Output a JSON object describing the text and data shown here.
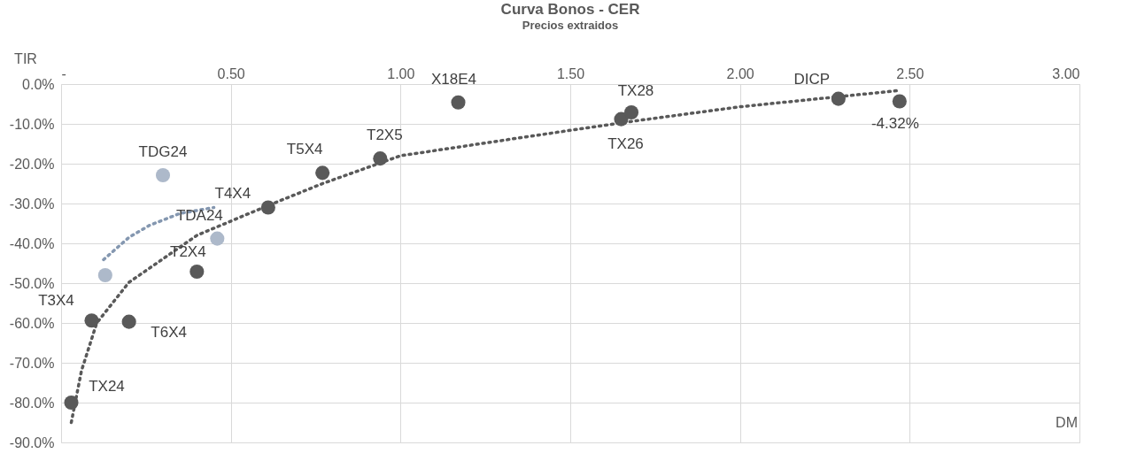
{
  "chart_data": {
    "type": "scatter",
    "title": "Curva Bonos - CER",
    "subtitle": "Precios extraidos",
    "xlabel": "DM",
    "ylabel": "TIR",
    "xlim": [
      0,
      3
    ],
    "xticks": [
      {
        "value": 0,
        "label": "-"
      },
      {
        "value": 0.5,
        "label": "0.50"
      },
      {
        "value": 1,
        "label": "1.00"
      },
      {
        "value": 1.5,
        "label": "1.50"
      },
      {
        "value": 2,
        "label": "2.00"
      },
      {
        "value": 2.5,
        "label": "2.50"
      },
      {
        "value": 3,
        "label": "3.00"
      }
    ],
    "ylim": [
      -90,
      0
    ],
    "yticks": [
      {
        "value": -90,
        "label": "-90.0%"
      },
      {
        "value": -80,
        "label": "-80.0%"
      },
      {
        "value": -70,
        "label": "-70.0%"
      },
      {
        "value": -60,
        "label": "-60.0%"
      },
      {
        "value": -50,
        "label": "-50.0%"
      },
      {
        "value": -40,
        "label": "-40.0%"
      },
      {
        "value": -30,
        "label": "-30.0%"
      },
      {
        "value": -20,
        "label": "-20.0%"
      },
      {
        "value": -10,
        "label": "-10.0%"
      },
      {
        "value": 0,
        "label": "0.0%"
      }
    ],
    "grid": true,
    "marker": "circle",
    "series": [
      {
        "type": "line",
        "marker": "none",
        "color": "#8497b0",
        "line_style": "dotted",
        "x": [
          0.125,
          0.2,
          0.26,
          0.35,
          0.45
        ],
        "values": [
          -44.1,
          -38.5,
          -35.5,
          -32.5,
          -31.0
        ]
      },
      {
        "type": "line",
        "marker": "none",
        "color": "#595959",
        "line_style": "dotted",
        "x": [
          0.03,
          0.06,
          0.105,
          0.2,
          0.4,
          0.61,
          0.77,
          1.0,
          1.39,
          1.67,
          2.0,
          2.47
        ],
        "values": [
          -85,
          -72,
          -60,
          -49.8,
          -38,
          -30.5,
          -25,
          -18,
          -13,
          -9.5,
          -5.7,
          -1.6
        ]
      },
      {
        "color": "#adb9ca",
        "x": [
          0.13,
          0.3,
          0.46
        ],
        "values": [
          -48.0,
          -22.9,
          -38.8
        ]
      },
      {
        "color": "#595959",
        "x": [
          0.03,
          0.09,
          0.2,
          0.4,
          0.61,
          0.77,
          0.94,
          1.17,
          1.65,
          1.68,
          2.29,
          2.47
        ],
        "values": [
          -80.0,
          -59.4,
          -59.7,
          -47.1,
          -31.0,
          -22.3,
          -18.7,
          -4.6,
          -8.8,
          -7.1,
          -3.7,
          -4.32
        ]
      }
    ],
    "annotations": [
      {
        "text": "TX24",
        "x": 0.03,
        "y": -80.0
      },
      {
        "text": "T3X4",
        "x": 0.09,
        "y": -59.4
      },
      {
        "text": "T6X4",
        "x": 0.2,
        "y": -59.7
      },
      {
        "text": "T2X4",
        "x": 0.4,
        "y": -47.1
      },
      {
        "text": "T4X4",
        "x": 0.61,
        "y": -31.0
      },
      {
        "text": "T5X4",
        "x": 0.77,
        "y": -22.3
      },
      {
        "text": "T2X5",
        "x": 0.94,
        "y": -18.7
      },
      {
        "text": "X18E4",
        "x": 1.17,
        "y": -4.6
      },
      {
        "text": "TX26",
        "x": 1.65,
        "y": -8.8
      },
      {
        "text": "TX28",
        "x": 1.68,
        "y": -7.1
      },
      {
        "text": "DICP",
        "x": 2.29,
        "y": -3.7
      },
      {
        "text": "-4.32%",
        "x": 2.47,
        "y": -4.32
      },
      {
        "text": "TDG24",
        "x": 0.3,
        "y": -22.9
      },
      {
        "text": "TDA24",
        "x": 0.46,
        "y": -38.8
      }
    ]
  }
}
